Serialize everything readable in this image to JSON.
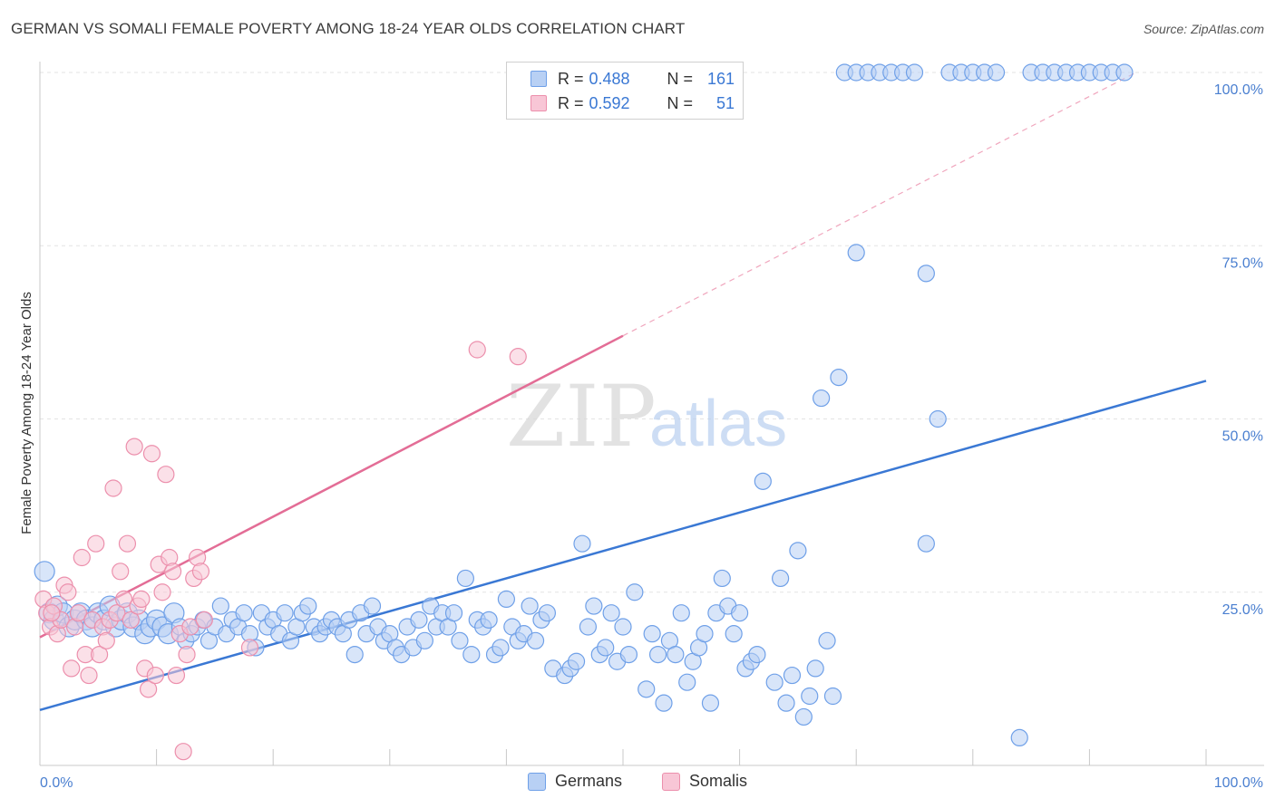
{
  "header": {
    "title": "GERMAN VS SOMALI FEMALE POVERTY AMONG 18-24 YEAR OLDS CORRELATION CHART",
    "source": "Source: ZipAtlas.com"
  },
  "legend": {
    "rows": [
      {
        "r_label": "R =",
        "r_value": "0.488",
        "n_label": "N =",
        "n_value": "161",
        "color": "#6fa0e8",
        "fill": "#b8d0f4"
      },
      {
        "r_label": "R =",
        "r_value": "0.592",
        "n_label": "N =",
        "n_value": "51",
        "color": "#ec8fac",
        "fill": "#f8c6d6"
      }
    ],
    "bottom": [
      {
        "label": "Germans",
        "color": "#6fa0e8",
        "fill": "#b8d0f4"
      },
      {
        "label": "Somalis",
        "color": "#ec8fac",
        "fill": "#f8c6d6"
      }
    ]
  },
  "watermark": {
    "zip": "ZIP",
    "atlas": "atlas"
  },
  "chart_data": {
    "type": "scatter",
    "title": "GERMAN VS SOMALI FEMALE POVERTY AMONG 18-24 YEAR OLDS CORRELATION CHART",
    "xlabel": "",
    "ylabel": "Female Poverty Among 18-24 Year Olds",
    "xlim": [
      0,
      100
    ],
    "ylim": [
      0,
      100
    ],
    "x_tick_labels": [
      "0.0%",
      "100.0%"
    ],
    "y_ticks": [
      25,
      50,
      75,
      100
    ],
    "y_tick_labels": [
      "25.0%",
      "50.0%",
      "75.0%",
      "100.0%"
    ],
    "grid": true,
    "colors": {
      "germans": "#3a78d4",
      "somalis": "#e36d96"
    },
    "series": [
      {
        "name": "Germans",
        "trendline": {
          "x": [
            0,
            100
          ],
          "y": [
            8,
            55.5
          ],
          "dashed": false
        },
        "points": [
          [
            0.4,
            28
          ],
          [
            0.8,
            22
          ],
          [
            1.2,
            21
          ],
          [
            1.5,
            23
          ],
          [
            2,
            22
          ],
          [
            2.5,
            20
          ],
          [
            3,
            21
          ],
          [
            3.5,
            22
          ],
          [
            4,
            21
          ],
          [
            4.5,
            20
          ],
          [
            5,
            22
          ],
          [
            5.5,
            21
          ],
          [
            6,
            23
          ],
          [
            6.5,
            20
          ],
          [
            7,
            21
          ],
          [
            7.5,
            22
          ],
          [
            8,
            20
          ],
          [
            8.5,
            21
          ],
          [
            9,
            19
          ],
          [
            9.5,
            20
          ],
          [
            10,
            21
          ],
          [
            10.5,
            20
          ],
          [
            11,
            19
          ],
          [
            11.5,
            22
          ],
          [
            12,
            20
          ],
          [
            12.5,
            18
          ],
          [
            13,
            19
          ],
          [
            13.5,
            20
          ],
          [
            14,
            21
          ],
          [
            14.5,
            18
          ],
          [
            15,
            20
          ],
          [
            15.5,
            23
          ],
          [
            16,
            19
          ],
          [
            16.5,
            21
          ],
          [
            17,
            20
          ],
          [
            17.5,
            22
          ],
          [
            18,
            19
          ],
          [
            18.5,
            17
          ],
          [
            19,
            22
          ],
          [
            19.5,
            20
          ],
          [
            20,
            21
          ],
          [
            20.5,
            19
          ],
          [
            21,
            22
          ],
          [
            21.5,
            18
          ],
          [
            22,
            20
          ],
          [
            22.5,
            22
          ],
          [
            23,
            23
          ],
          [
            23.5,
            20
          ],
          [
            24,
            19
          ],
          [
            24.5,
            20
          ],
          [
            25,
            21
          ],
          [
            25.5,
            20
          ],
          [
            26,
            19
          ],
          [
            26.5,
            21
          ],
          [
            27,
            16
          ],
          [
            27.5,
            22
          ],
          [
            28,
            19
          ],
          [
            28.5,
            23
          ],
          [
            29,
            20
          ],
          [
            29.5,
            18
          ],
          [
            30,
            19
          ],
          [
            30.5,
            17
          ],
          [
            31,
            16
          ],
          [
            31.5,
            20
          ],
          [
            32,
            17
          ],
          [
            32.5,
            21
          ],
          [
            33,
            18
          ],
          [
            33.5,
            23
          ],
          [
            34,
            20
          ],
          [
            34.5,
            22
          ],
          [
            35,
            20
          ],
          [
            35.5,
            22
          ],
          [
            36,
            18
          ],
          [
            36.5,
            27
          ],
          [
            37,
            16
          ],
          [
            37.5,
            21
          ],
          [
            38,
            20
          ],
          [
            38.5,
            21
          ],
          [
            39,
            16
          ],
          [
            39.5,
            17
          ],
          [
            40,
            24
          ],
          [
            40.5,
            20
          ],
          [
            41,
            18
          ],
          [
            41.5,
            19
          ],
          [
            42,
            23
          ],
          [
            42.5,
            18
          ],
          [
            43,
            21
          ],
          [
            43.5,
            22
          ],
          [
            44,
            14
          ],
          [
            45,
            13
          ],
          [
            45.5,
            14
          ],
          [
            46,
            15
          ],
          [
            46.5,
            32
          ],
          [
            47,
            20
          ],
          [
            47.5,
            23
          ],
          [
            48,
            16
          ],
          [
            48.5,
            17
          ],
          [
            49,
            22
          ],
          [
            49.5,
            15
          ],
          [
            50,
            20
          ],
          [
            50.5,
            16
          ],
          [
            51,
            25
          ],
          [
            52,
            11
          ],
          [
            52.5,
            19
          ],
          [
            53,
            16
          ],
          [
            53.5,
            9
          ],
          [
            54,
            18
          ],
          [
            54.5,
            16
          ],
          [
            55,
            22
          ],
          [
            55.5,
            12
          ],
          [
            56,
            15
          ],
          [
            56.5,
            17
          ],
          [
            57,
            19
          ],
          [
            57.5,
            9
          ],
          [
            58,
            22
          ],
          [
            58.5,
            27
          ],
          [
            59,
            23
          ],
          [
            59.5,
            19
          ],
          [
            60,
            22
          ],
          [
            60.5,
            14
          ],
          [
            61,
            15
          ],
          [
            61.5,
            16
          ],
          [
            62,
            41
          ],
          [
            63,
            12
          ],
          [
            63.5,
            27
          ],
          [
            64,
            9
          ],
          [
            64.5,
            13
          ],
          [
            65,
            31
          ],
          [
            65.5,
            7
          ],
          [
            66,
            10
          ],
          [
            66.5,
            14
          ],
          [
            67,
            53
          ],
          [
            67.5,
            18
          ],
          [
            68,
            10
          ],
          [
            68.5,
            56
          ],
          [
            69,
            100
          ],
          [
            70,
            100
          ],
          [
            71,
            100
          ],
          [
            72,
            100
          ],
          [
            73,
            100
          ],
          [
            74,
            100
          ],
          [
            75,
            100
          ],
          [
            76,
            32
          ],
          [
            77,
            50
          ],
          [
            78,
            100
          ],
          [
            79,
            100
          ],
          [
            80,
            100
          ],
          [
            81,
            100
          ],
          [
            82,
            100
          ],
          [
            84,
            4
          ],
          [
            85,
            100
          ],
          [
            86,
            100
          ],
          [
            87,
            100
          ],
          [
            88,
            100
          ],
          [
            89,
            100
          ],
          [
            90,
            100
          ],
          [
            91,
            100
          ],
          [
            92,
            100
          ],
          [
            70,
            74
          ],
          [
            76,
            71
          ],
          [
            93,
            100
          ]
        ]
      },
      {
        "name": "Somalis",
        "trendline": {
          "x": [
            0,
            50,
            94
          ],
          "y": [
            18.5,
            62,
            100
          ],
          "dashed_from": 50
        },
        "points": [
          [
            0.3,
            24
          ],
          [
            0.6,
            22
          ],
          [
            0.9,
            20
          ],
          [
            1.2,
            23
          ],
          [
            1.5,
            19
          ],
          [
            1.8,
            21
          ],
          [
            2.1,
            26
          ],
          [
            2.4,
            25
          ],
          [
            2.7,
            14
          ],
          [
            3,
            20
          ],
          [
            3.3,
            22
          ],
          [
            3.6,
            30
          ],
          [
            3.9,
            16
          ],
          [
            4.2,
            13
          ],
          [
            4.5,
            21
          ],
          [
            4.8,
            32
          ],
          [
            5.1,
            16
          ],
          [
            5.4,
            20
          ],
          [
            5.7,
            18
          ],
          [
            6,
            21
          ],
          [
            6.3,
            40
          ],
          [
            6.6,
            22
          ],
          [
            6.9,
            28
          ],
          [
            7.2,
            24
          ],
          [
            7.5,
            32
          ],
          [
            7.8,
            21
          ],
          [
            8.1,
            46
          ],
          [
            8.4,
            23
          ],
          [
            8.7,
            24
          ],
          [
            9,
            14
          ],
          [
            9.3,
            11
          ],
          [
            9.6,
            45
          ],
          [
            9.9,
            13
          ],
          [
            10.2,
            29
          ],
          [
            10.5,
            25
          ],
          [
            10.8,
            42
          ],
          [
            11.1,
            30
          ],
          [
            11.4,
            28
          ],
          [
            11.7,
            13
          ],
          [
            12,
            19
          ],
          [
            12.3,
            2
          ],
          [
            12.6,
            16
          ],
          [
            12.9,
            20
          ],
          [
            13.2,
            27
          ],
          [
            13.5,
            30
          ],
          [
            13.8,
            28
          ],
          [
            14.1,
            21
          ],
          [
            18,
            17
          ],
          [
            37.5,
            60
          ],
          [
            41,
            59
          ],
          [
            1,
            22
          ]
        ]
      }
    ]
  }
}
